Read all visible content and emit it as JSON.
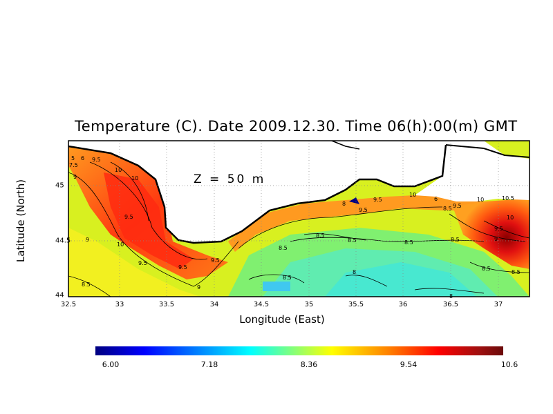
{
  "figure": {
    "title": "Temperature (C). Date 2009.12.30. Time 06(h):00(m) GMT",
    "depth_label": "Z = 50 m",
    "x_axis_label": "Longitude (East)",
    "y_axis_label": "Latitude (North)"
  },
  "axes": {
    "x_ticks": [
      "32.5",
      "33",
      "33.5",
      "34",
      "34.5",
      "35",
      "35.5",
      "36",
      "36.5",
      "37"
    ],
    "y_ticks": [
      "44",
      "44.5",
      "45"
    ]
  },
  "colorbar": {
    "labels": [
      "6.00",
      "7.18",
      "8.36",
      "9.54",
      "10.6"
    ],
    "colors": [
      "#000080",
      "#0000ff",
      "#00ffff",
      "#ffff00",
      "#ff0000",
      "#6b0a0a"
    ]
  },
  "contour_labels": [
    "7.5",
    "5",
    "6",
    "9.5",
    "10",
    "9",
    "10",
    "9.5",
    "9.5",
    "9.5",
    "10",
    "9",
    "9.5",
    "9",
    "8.5",
    "8",
    "9.5",
    "10",
    "9.5",
    "6",
    "8.5",
    "10",
    "10.5",
    "9.5",
    "10",
    "9.5",
    "8.5",
    "8.5",
    "8.5",
    "8.5",
    "9",
    "8.5",
    "8.5",
    "8.5",
    "8",
    "8",
    "8.5"
  ]
}
